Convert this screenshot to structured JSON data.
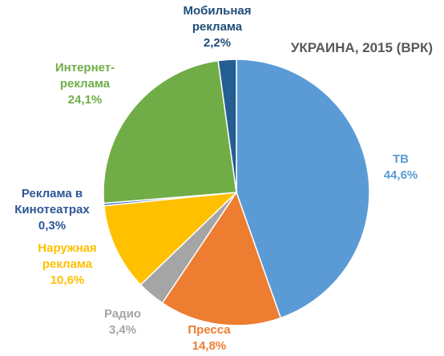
{
  "chart_data": {
    "type": "pie",
    "title": "УКРАИНА, 2015 (ВРК)",
    "slices": [
      {
        "label": [
          "ТВ"
        ],
        "value": "44,6%",
        "share": 44.6,
        "color": "#5B9BD5"
      },
      {
        "label": [
          "Пресса"
        ],
        "value": "14,8%",
        "share": 14.8,
        "color": "#ED7D31"
      },
      {
        "label": [
          "Радио"
        ],
        "value": "3,4%",
        "share": 3.4,
        "color": "#A5A5A5"
      },
      {
        "label": [
          "Наружная",
          "реклама"
        ],
        "value": "10,6%",
        "share": 10.6,
        "color": "#FFC000"
      },
      {
        "label": [
          "Реклама в",
          "Кинотеатрах"
        ],
        "value": "0,3%",
        "share": 0.3,
        "color": "#4472C4",
        "text_color": "#2E5597"
      },
      {
        "label": [
          "Интернет-",
          "реклама"
        ],
        "value": "24,1%",
        "share": 24.1,
        "color": "#70AD47"
      },
      {
        "label": [
          "Мобильная",
          "реклама"
        ],
        "value": "2,2%",
        "share": 2.2,
        "color": "#255E91",
        "text_color": "#1F4E79"
      }
    ]
  }
}
